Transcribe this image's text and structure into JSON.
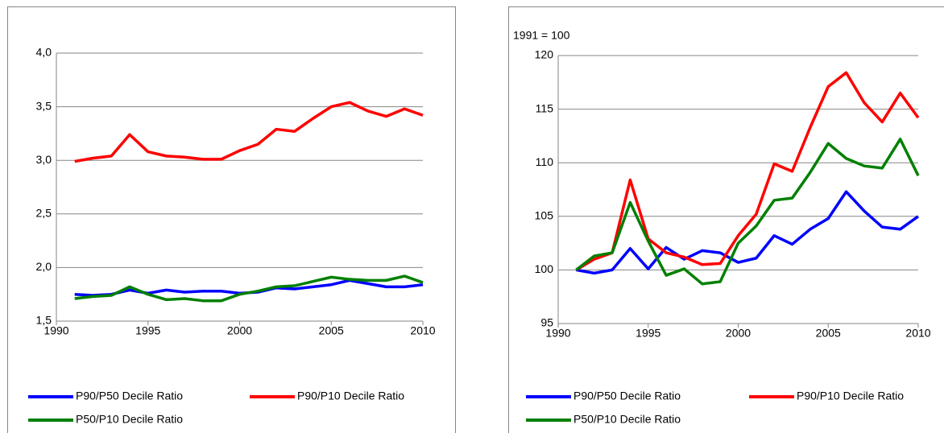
{
  "chart_data": [
    {
      "type": "line",
      "x": [
        1991,
        1992,
        1993,
        1994,
        1995,
        1996,
        1997,
        1998,
        1999,
        2000,
        2001,
        2002,
        2003,
        2004,
        2005,
        2006,
        2007,
        2008,
        2009,
        2010
      ],
      "series": [
        {
          "name": "P90/P50 Decile Ratio",
          "color": "#0000ff",
          "values": [
            1.75,
            1.74,
            1.75,
            1.79,
            1.76,
            1.79,
            1.77,
            1.78,
            1.78,
            1.76,
            1.77,
            1.81,
            1.8,
            1.82,
            1.84,
            1.88,
            1.85,
            1.82,
            1.82,
            1.84
          ]
        },
        {
          "name": "P90/P10 Decile Ratio",
          "color": "#ff0000",
          "values": [
            2.99,
            3.02,
            3.04,
            3.24,
            3.08,
            3.04,
            3.03,
            3.01,
            3.01,
            3.09,
            3.15,
            3.29,
            3.27,
            3.39,
            3.5,
            3.54,
            3.46,
            3.41,
            3.48,
            3.42
          ]
        },
        {
          "name": "P50/P10 Decile Ratio",
          "color": "#008000",
          "values": [
            1.71,
            1.73,
            1.74,
            1.82,
            1.75,
            1.7,
            1.71,
            1.69,
            1.69,
            1.75,
            1.78,
            1.82,
            1.83,
            1.87,
            1.91,
            1.89,
            1.88,
            1.88,
            1.92,
            1.86
          ]
        }
      ],
      "xlim": [
        1990,
        2010
      ],
      "xticks": [
        1990,
        1995,
        2000,
        2005,
        2010
      ],
      "ylim": [
        1.5,
        4.0
      ],
      "yticks": [
        {
          "value": 1.5,
          "label": "1,5"
        },
        {
          "value": 2.0,
          "label": "2,0"
        },
        {
          "value": 2.5,
          "label": "2,5"
        },
        {
          "value": 3.0,
          "label": "3,0"
        },
        {
          "value": 3.5,
          "label": "3,5"
        },
        {
          "value": 4.0,
          "label": "4,0"
        }
      ],
      "grid": true,
      "legend": "bottom"
    },
    {
      "type": "line",
      "annotation": "1991 = 100",
      "x": [
        1991,
        1992,
        1993,
        1994,
        1995,
        1996,
        1997,
        1998,
        1999,
        2000,
        2001,
        2002,
        2003,
        2004,
        2005,
        2006,
        2007,
        2008,
        2009,
        2010
      ],
      "series": [
        {
          "name": "P90/P50 Decile Ratio",
          "color": "#0000ff",
          "values": [
            100,
            99.7,
            100,
            102,
            100.1,
            102.1,
            101,
            101.8,
            101.6,
            100.7,
            101.1,
            103.2,
            102.4,
            103.8,
            104.8,
            107.3,
            105.5,
            104,
            103.8,
            105
          ]
        },
        {
          "name": "P90/P10 Decile Ratio",
          "color": "#ff0000",
          "values": [
            100,
            101,
            101.6,
            108.4,
            102.9,
            101.6,
            101.2,
            100.5,
            100.6,
            103.2,
            105.2,
            109.9,
            109.2,
            113.3,
            117.1,
            118.4,
            115.6,
            113.8,
            116.5,
            114.2
          ]
        },
        {
          "name": "P50/P10 Decile Ratio",
          "color": "#008000",
          "values": [
            100,
            101.3,
            101.6,
            106.3,
            102.7,
            99.5,
            100.1,
            98.7,
            98.9,
            102.5,
            104.1,
            106.5,
            106.7,
            109.1,
            111.8,
            110.4,
            109.7,
            109.5,
            112.2,
            108.8
          ]
        }
      ],
      "xlim": [
        1990,
        2010
      ],
      "xticks": [
        1990,
        1995,
        2000,
        2005,
        2010
      ],
      "ylim": [
        95,
        120
      ],
      "yticks": [
        95,
        100,
        105,
        110,
        115,
        120
      ],
      "grid": true,
      "legend": "bottom"
    }
  ]
}
